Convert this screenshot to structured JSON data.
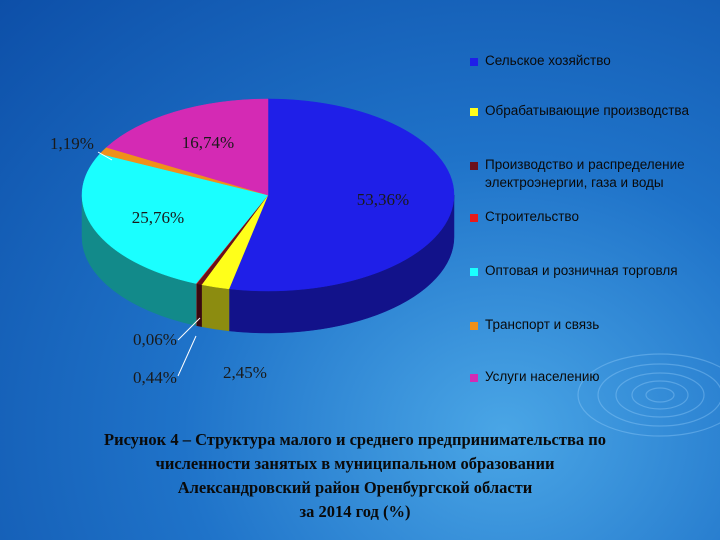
{
  "chart_data": {
    "type": "pie",
    "title": "",
    "categories": [
      "Сельское хозяйство",
      "Обрабатывающие производства",
      "Производство и распределение электроэнергии, газа и воды",
      "Строительство",
      "Оптовая и розничная торговля",
      "Транспорт и связь",
      "Услуги населению"
    ],
    "values": [
      53.36,
      2.45,
      0.44,
      0.06,
      25.76,
      1.19,
      16.74
    ],
    "value_labels": [
      "53,36%",
      "2,45%",
      "0,44%",
      "0,06%",
      "25,76%",
      "1,19%",
      "16,74%"
    ],
    "colors": [
      "#1f1fe8",
      "#ffff1a",
      "#6b0f1a",
      "#e81a1a",
      "#1affff",
      "#f0901a",
      "#d42ab4"
    ],
    "side_colors": [
      "#12128a",
      "#8c8c10",
      "#3a0810",
      "#8a1010",
      "#128a8a",
      "#8a5010",
      "#7a1868"
    ],
    "legend_position": "right"
  },
  "caption": {
    "line1": "Рисунок 4 – Структура малого и среднего предпринимательства  по",
    "line2": "численности занятых в муниципальном образовании",
    "line3": "Александровский район Оренбургской области",
    "line4": "за 2014 год (%)"
  }
}
